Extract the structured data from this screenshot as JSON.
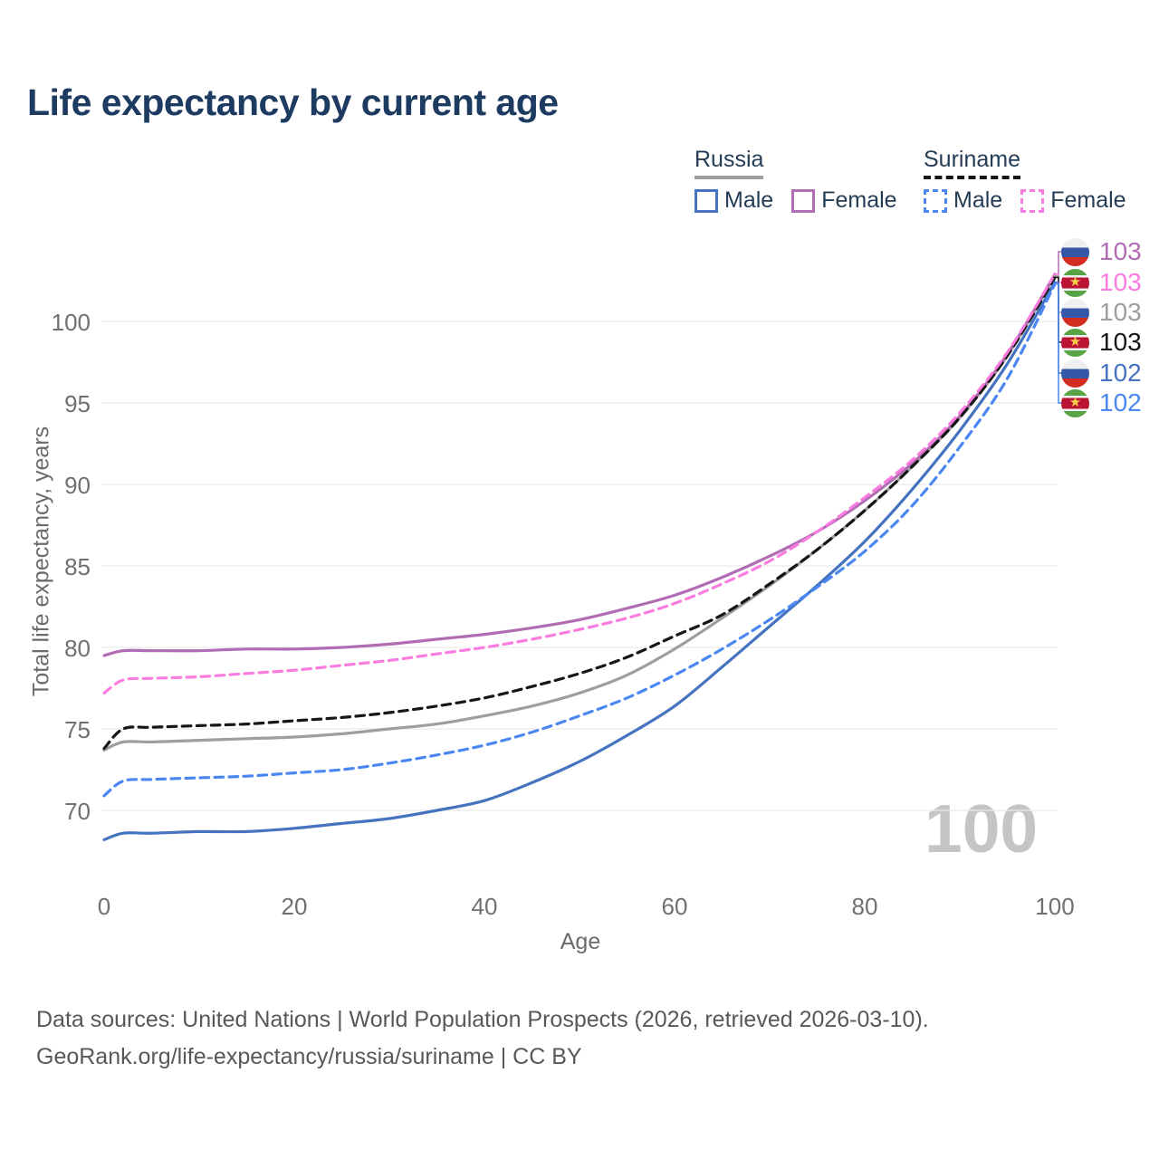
{
  "title": "Life expectancy by current age",
  "legend": {
    "groups": [
      {
        "name": "Russia",
        "underline_style": "solid",
        "underline_color": "#9e9e9e",
        "items": [
          {
            "label": "Male",
            "color": "#4673c0",
            "dashed": false
          },
          {
            "label": "Female",
            "color": "#b16cb4",
            "dashed": false
          }
        ]
      },
      {
        "name": "Suriname",
        "underline_style": "dashed",
        "underline_color": "#161616",
        "items": [
          {
            "label": "Male",
            "color": "#4a87f2",
            "dashed": true
          },
          {
            "label": "Female",
            "color": "#fb7ce0",
            "dashed": true
          }
        ]
      }
    ]
  },
  "watermark_age": "100",
  "footer": {
    "line1": "Data sources: United Nations | World Population Prospects (2026, retrieved 2026-03-10).",
    "line2": "GeoRank.org/life-expectancy/russia/suriname | CC BY"
  },
  "chart_data": {
    "type": "line",
    "title": "Life expectancy by current age",
    "xlabel": "Age",
    "ylabel": "Total life expectancy, years",
    "x_ticks": [
      0,
      20,
      40,
      60,
      80,
      100
    ],
    "y_ticks": [
      70,
      75,
      80,
      85,
      90,
      95,
      100
    ],
    "xlim": [
      0,
      100
    ],
    "ylim": [
      67,
      104
    ],
    "grid": "horizontal",
    "legend_position": "top-right",
    "x": [
      0,
      2,
      5,
      10,
      15,
      20,
      25,
      30,
      35,
      40,
      45,
      50,
      55,
      60,
      65,
      70,
      75,
      80,
      85,
      90,
      95,
      100
    ],
    "series": [
      {
        "name": "Russia Female",
        "country": "Russia",
        "sex": "Female",
        "color": "#b16cb4",
        "dashed": false,
        "flag": "russia",
        "end_label": "103",
        "values": [
          79.5,
          79.8,
          79.8,
          79.8,
          79.9,
          79.9,
          80.0,
          80.2,
          80.5,
          80.8,
          81.2,
          81.7,
          82.4,
          83.2,
          84.3,
          85.6,
          87.1,
          89.0,
          91.3,
          94.2,
          98.0,
          102.9
        ]
      },
      {
        "name": "Suriname Female",
        "country": "Suriname",
        "sex": "Female",
        "color": "#fb7ce0",
        "dashed": true,
        "flag": "suriname",
        "end_label": "103",
        "values": [
          77.2,
          78.0,
          78.1,
          78.2,
          78.4,
          78.6,
          78.9,
          79.2,
          79.6,
          80.0,
          80.5,
          81.1,
          81.8,
          82.7,
          83.9,
          85.3,
          87.1,
          89.2,
          91.5,
          94.4,
          98.1,
          102.9
        ]
      },
      {
        "name": "Russia Both sexes",
        "country": "Russia",
        "sex": "Both",
        "color": "#9e9e9e",
        "dashed": false,
        "flag": "russia",
        "end_label": "103",
        "values": [
          73.7,
          74.2,
          74.2,
          74.3,
          74.4,
          74.5,
          74.7,
          75.0,
          75.3,
          75.8,
          76.4,
          77.2,
          78.3,
          79.9,
          81.8,
          83.8,
          86.0,
          88.4,
          91.1,
          94.1,
          97.9,
          102.8
        ]
      },
      {
        "name": "Suriname Both sexes",
        "country": "Suriname",
        "sex": "Both",
        "color": "#161616",
        "dashed": true,
        "flag": "suriname",
        "end_label": "103",
        "values": [
          73.8,
          75.0,
          75.1,
          75.2,
          75.3,
          75.5,
          75.7,
          76.0,
          76.4,
          76.9,
          77.6,
          78.4,
          79.4,
          80.7,
          82.0,
          83.9,
          86.0,
          88.4,
          91.1,
          94.1,
          97.9,
          102.7
        ]
      },
      {
        "name": "Russia Male",
        "country": "Russia",
        "sex": "Male",
        "color": "#4673c0",
        "dashed": false,
        "flag": "russia",
        "end_label": "102",
        "values": [
          68.2,
          68.6,
          68.6,
          68.7,
          68.7,
          68.9,
          69.2,
          69.5,
          70.0,
          70.6,
          71.7,
          73.0,
          74.6,
          76.4,
          78.8,
          81.3,
          83.8,
          86.5,
          89.7,
          93.3,
          97.4,
          102.4
        ]
      },
      {
        "name": "Suriname Male",
        "country": "Suriname",
        "sex": "Male",
        "color": "#4a87f2",
        "dashed": true,
        "flag": "suriname",
        "end_label": "102",
        "values": [
          70.9,
          71.8,
          71.9,
          72.0,
          72.1,
          72.3,
          72.5,
          72.9,
          73.4,
          74.0,
          74.8,
          75.8,
          76.9,
          78.3,
          79.9,
          81.7,
          83.7,
          85.9,
          88.7,
          92.3,
          96.5,
          102.3
        ]
      }
    ]
  }
}
